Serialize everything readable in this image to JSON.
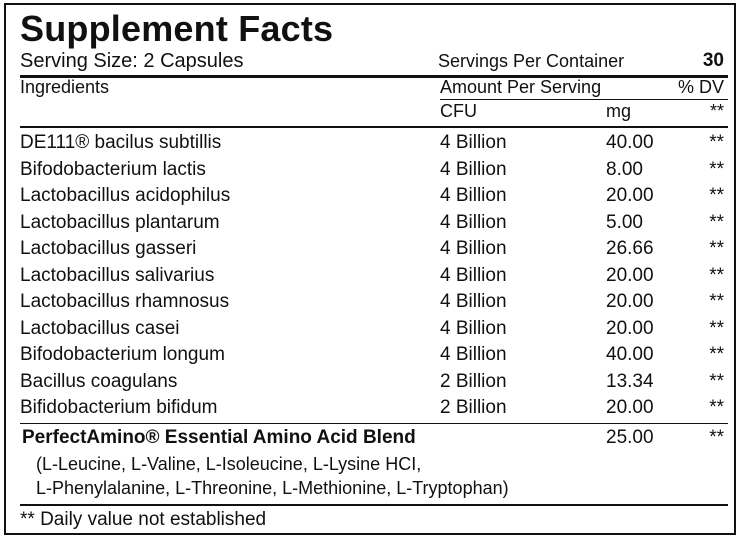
{
  "title": "Supplement Facts",
  "serving_size": "Serving Size: 2 Capsules",
  "servings_per_container": {
    "label": "Servings Per Container",
    "value": "30"
  },
  "header": {
    "ingredients": "Ingredients",
    "amount_per_serving": "Amount Per Serving",
    "daily_value": "% DV",
    "cfu": "CFU",
    "mg": "mg",
    "dv_mark": "**"
  },
  "ingredients": [
    {
      "name": "DE111® bacilus subtillis",
      "cfu": "4 Billion",
      "mg": "40.00",
      "dv": "**"
    },
    {
      "name": "Bifodobacterium lactis",
      "cfu": "4 Billion",
      "mg": "8.00",
      "dv": "**"
    },
    {
      "name": "Lactobacillus acidophilus",
      "cfu": "4 Billion",
      "mg": "20.00",
      "dv": "**"
    },
    {
      "name": "Lactobacillus plantarum",
      "cfu": "4 Billion",
      "mg": "5.00",
      "dv": "**"
    },
    {
      "name": "Lactobacillus gasseri",
      "cfu": "4 Billion",
      "mg": "26.66",
      "dv": "**"
    },
    {
      "name": "Lactobacillus salivarius",
      "cfu": "4 Billion",
      "mg": "20.00",
      "dv": "**"
    },
    {
      "name": "Lactobacillus rhamnosus",
      "cfu": "4 Billion",
      "mg": "20.00",
      "dv": "**"
    },
    {
      "name": "Lactobacillus casei",
      "cfu": "4 Billion",
      "mg": "20.00",
      "dv": "**"
    },
    {
      "name": "Bifodobacterium longum",
      "cfu": "4 Billion",
      "mg": "40.00",
      "dv": "**"
    },
    {
      "name": "Bacillus coagulans",
      "cfu": "2 Billion",
      "mg": "13.34",
      "dv": "**"
    },
    {
      "name": "Bifidobacterium bifidum",
      "cfu": "2 Billion",
      "mg": "20.00",
      "dv": "**"
    }
  ],
  "blend": {
    "name": "PerfectAmino® Essential Amino Acid Blend",
    "mg": "25.00",
    "dv": "**",
    "line1": "(L-Leucine, L-Valine, L-Isoleucine, L-Lysine HCI,",
    "line2": "L-Phenylalanine, L-Threonine, L-Methionine, L-Tryptophan)"
  },
  "footnote": "** Daily value not established"
}
